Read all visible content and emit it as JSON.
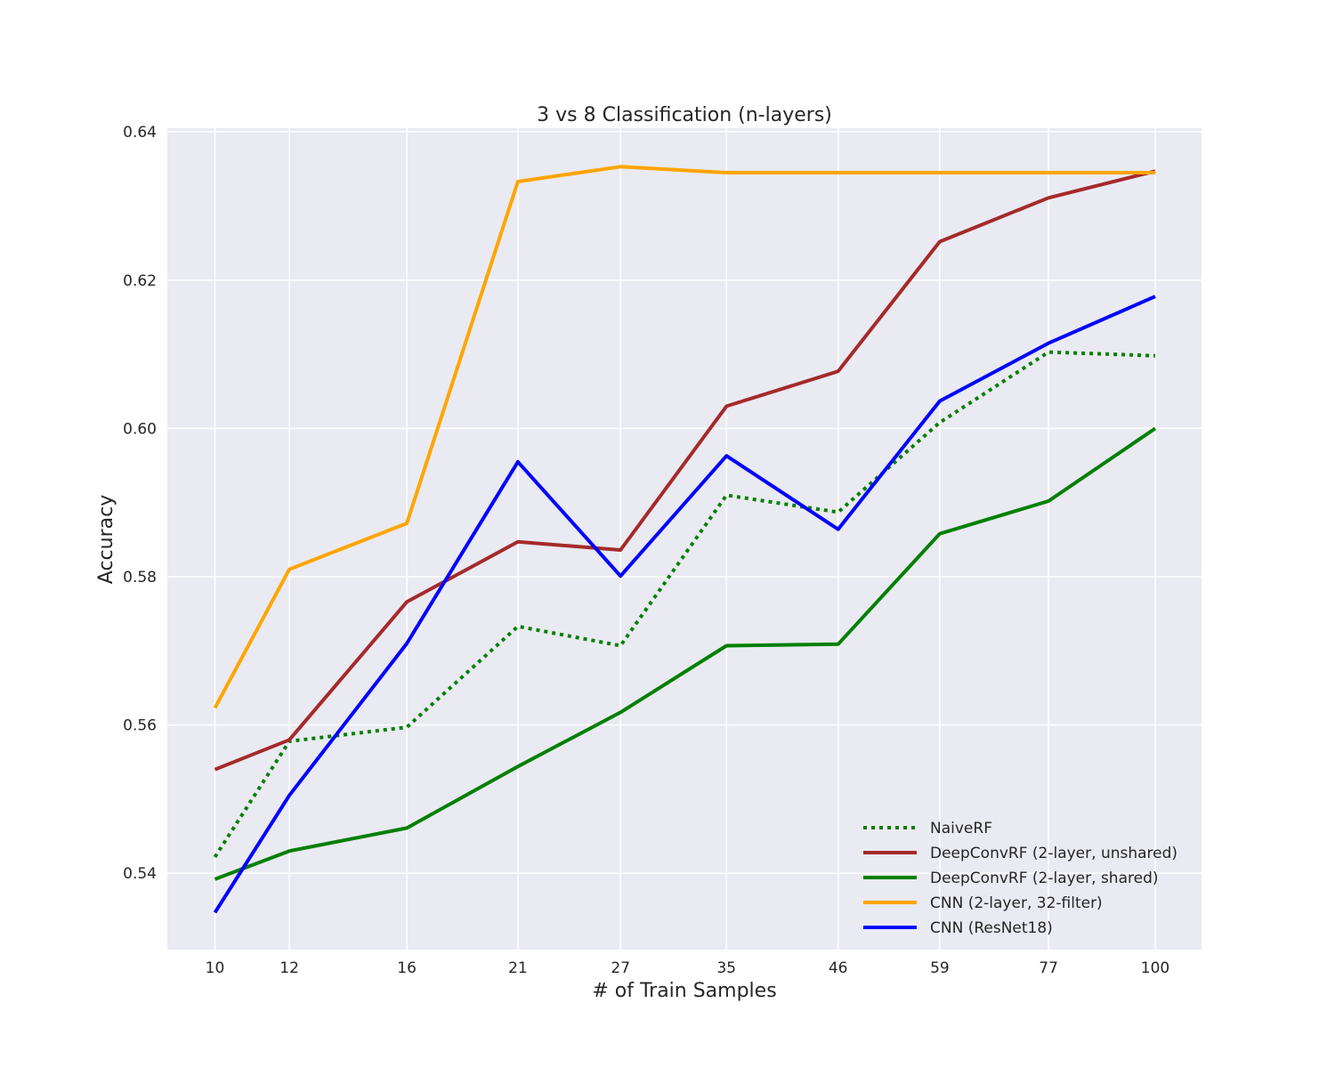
{
  "chart_data": {
    "type": "line",
    "title": "3 vs 8 Classification (n-layers)",
    "xlabel": "# of Train Samples",
    "ylabel": "Accuracy",
    "x": [
      10,
      12,
      16,
      21,
      27,
      35,
      46,
      59,
      77,
      100
    ],
    "x_scale": "log",
    "x_ticks": [
      "10",
      "12",
      "16",
      "21",
      "27",
      "35",
      "46",
      "59",
      "77",
      "100"
    ],
    "xlim": [
      8.9,
      112
    ],
    "ylim": [
      0.5297,
      0.6405
    ],
    "y_ticks": [
      "0.54",
      "0.56",
      "0.58",
      "0.60",
      "0.62",
      "0.64"
    ],
    "grid": true,
    "legend_position": "lower-right",
    "background": "#eaeaf2",
    "series": [
      {
        "name": "NaiveRF",
        "color": "#008000",
        "style": "dotted",
        "values": [
          0.5422,
          0.5578,
          0.5597,
          0.5733,
          0.5707,
          0.591,
          0.5887,
          0.6008,
          0.6103,
          0.6098
        ]
      },
      {
        "name": "DeepConvRF (2-layer, unshared)",
        "color": "#a52a2a",
        "style": "solid",
        "values": [
          0.554,
          0.558,
          0.5766,
          0.5847,
          0.5836,
          0.603,
          0.6077,
          0.6252,
          0.6311,
          0.6347
        ]
      },
      {
        "name": "DeepConvRF (2-layer, shared)",
        "color": "#008000",
        "style": "solid",
        "values": [
          0.5392,
          0.543,
          0.5461,
          0.5544,
          0.5617,
          0.5707,
          0.5709,
          0.5858,
          0.5902,
          0.6
        ]
      },
      {
        "name": "CNN (2-layer, 32-filter)",
        "color": "#ffa500",
        "style": "solid",
        "values": [
          0.5623,
          0.581,
          0.5872,
          0.6333,
          0.6353,
          0.6345,
          0.6345,
          0.6345,
          0.6345,
          0.6345
        ]
      },
      {
        "name": "CNN (ResNet18)",
        "color": "#0000ff",
        "style": "solid",
        "values": [
          0.5347,
          0.5505,
          0.571,
          0.5955,
          0.5801,
          0.5963,
          0.5864,
          0.6037,
          0.6115,
          0.6178
        ]
      }
    ]
  }
}
